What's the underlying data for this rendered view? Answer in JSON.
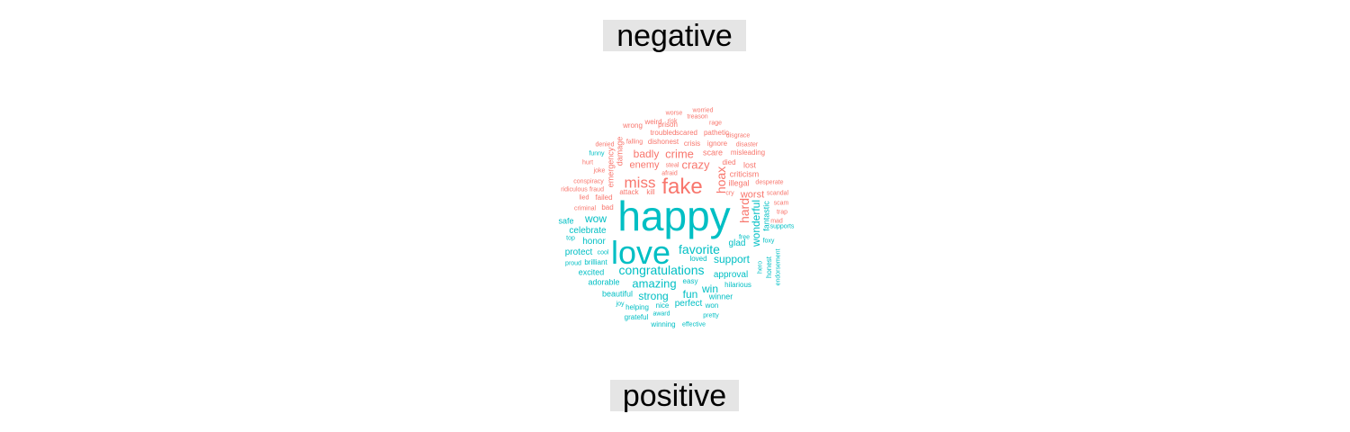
{
  "chart_data": {
    "type": "wordcloud",
    "groups": [
      {
        "name": "negative",
        "color": "#F8766D"
      },
      {
        "name": "positive",
        "color": "#00BFC4"
      }
    ],
    "words": [
      {
        "text": "happy",
        "group": "positive",
        "weight": 46
      },
      {
        "text": "love",
        "group": "positive",
        "weight": 36
      },
      {
        "text": "fake",
        "group": "negative",
        "weight": 24
      },
      {
        "text": "miss",
        "group": "negative",
        "weight": 17
      },
      {
        "text": "hoax",
        "group": "negative",
        "weight": 14
      },
      {
        "text": "hard",
        "group": "negative",
        "weight": 14
      },
      {
        "text": "favorite",
        "group": "positive",
        "weight": 14
      },
      {
        "text": "congratulations",
        "group": "positive",
        "weight": 14
      },
      {
        "text": "amazing",
        "group": "positive",
        "weight": 13
      },
      {
        "text": "crazy",
        "group": "negative",
        "weight": 13
      },
      {
        "text": "crime",
        "group": "negative",
        "weight": 13
      },
      {
        "text": "badly",
        "group": "negative",
        "weight": 12
      },
      {
        "text": "wonderful",
        "group": "positive",
        "weight": 12
      },
      {
        "text": "support",
        "group": "positive",
        "weight": 12
      },
      {
        "text": "wow",
        "group": "positive",
        "weight": 12
      },
      {
        "text": "fun",
        "group": "positive",
        "weight": 12
      },
      {
        "text": "strong",
        "group": "positive",
        "weight": 12
      },
      {
        "text": "win",
        "group": "positive",
        "weight": 12
      },
      {
        "text": "worst",
        "group": "negative",
        "weight": 11
      },
      {
        "text": "enemy",
        "group": "negative",
        "weight": 11
      },
      {
        "text": "protect",
        "group": "positive",
        "weight": 10
      },
      {
        "text": "glad",
        "group": "positive",
        "weight": 10
      },
      {
        "text": "celebrate",
        "group": "positive",
        "weight": 10
      },
      {
        "text": "perfect",
        "group": "positive",
        "weight": 10
      },
      {
        "text": "honor",
        "group": "positive",
        "weight": 10
      },
      {
        "text": "approval",
        "group": "positive",
        "weight": 10
      },
      {
        "text": "illegal",
        "group": "negative",
        "weight": 9
      },
      {
        "text": "beautiful",
        "group": "positive",
        "weight": 9
      },
      {
        "text": "fantastic",
        "group": "positive",
        "weight": 9
      },
      {
        "text": "winner",
        "group": "positive",
        "weight": 9
      },
      {
        "text": "scare",
        "group": "negative",
        "weight": 9
      },
      {
        "text": "criticism",
        "group": "negative",
        "weight": 9
      },
      {
        "text": "lost",
        "group": "negative",
        "weight": 9
      },
      {
        "text": "safe",
        "group": "positive",
        "weight": 9
      },
      {
        "text": "damage",
        "group": "negative",
        "weight": 9
      },
      {
        "text": "emergency",
        "group": "negative",
        "weight": 9
      },
      {
        "text": "excited",
        "group": "positive",
        "weight": 9
      },
      {
        "text": "adorable",
        "group": "positive",
        "weight": 9
      },
      {
        "text": "misleading",
        "group": "negative",
        "weight": 8
      },
      {
        "text": "dishonest",
        "group": "negative",
        "weight": 8
      },
      {
        "text": "failed",
        "group": "negative",
        "weight": 8
      },
      {
        "text": "honest",
        "group": "positive",
        "weight": 8
      },
      {
        "text": "grateful",
        "group": "positive",
        "weight": 8
      },
      {
        "text": "loved",
        "group": "positive",
        "weight": 8
      },
      {
        "text": "easy",
        "group": "positive",
        "weight": 8
      },
      {
        "text": "hilarious",
        "group": "positive",
        "weight": 8
      },
      {
        "text": "pathetic",
        "group": "negative",
        "weight": 8
      },
      {
        "text": "troubled",
        "group": "negative",
        "weight": 8
      },
      {
        "text": "scared",
        "group": "negative",
        "weight": 8
      },
      {
        "text": "wrong",
        "group": "negative",
        "weight": 8
      },
      {
        "text": "weird",
        "group": "negative",
        "weight": 8
      },
      {
        "text": "prison",
        "group": "negative",
        "weight": 8
      },
      {
        "text": "crisis",
        "group": "negative",
        "weight": 8
      },
      {
        "text": "ignore",
        "group": "negative",
        "weight": 8
      },
      {
        "text": "died",
        "group": "negative",
        "weight": 8
      },
      {
        "text": "attack",
        "group": "negative",
        "weight": 8
      },
      {
        "text": "kill",
        "group": "negative",
        "weight": 8
      },
      {
        "text": "bad",
        "group": "negative",
        "weight": 8
      },
      {
        "text": "brilliant",
        "group": "positive",
        "weight": 8
      },
      {
        "text": "nice",
        "group": "positive",
        "weight": 8
      },
      {
        "text": "won",
        "group": "positive",
        "weight": 8
      },
      {
        "text": "helping",
        "group": "positive",
        "weight": 8
      },
      {
        "text": "winning",
        "group": "positive",
        "weight": 8
      },
      {
        "text": "risk",
        "group": "negative",
        "weight": 7
      },
      {
        "text": "worried",
        "group": "negative",
        "weight": 7
      },
      {
        "text": "worse",
        "group": "negative",
        "weight": 7
      },
      {
        "text": "treason",
        "group": "negative",
        "weight": 7
      },
      {
        "text": "rage",
        "group": "negative",
        "weight": 7
      },
      {
        "text": "disgrace",
        "group": "negative",
        "weight": 7
      },
      {
        "text": "disaster",
        "group": "negative",
        "weight": 7
      },
      {
        "text": "desperate",
        "group": "negative",
        "weight": 7
      },
      {
        "text": "scandal",
        "group": "negative",
        "weight": 7
      },
      {
        "text": "scam",
        "group": "negative",
        "weight": 7
      },
      {
        "text": "trap",
        "group": "negative",
        "weight": 7
      },
      {
        "text": "mad",
        "group": "negative",
        "weight": 7
      },
      {
        "text": "falling",
        "group": "negative",
        "weight": 7
      },
      {
        "text": "denied",
        "group": "negative",
        "weight": 7
      },
      {
        "text": "funny",
        "group": "positive",
        "weight": 7
      },
      {
        "text": "hurt",
        "group": "negative",
        "weight": 7
      },
      {
        "text": "joke",
        "group": "negative",
        "weight": 7
      },
      {
        "text": "conspiracy",
        "group": "negative",
        "weight": 7
      },
      {
        "text": "ridiculous",
        "group": "negative",
        "weight": 7
      },
      {
        "text": "fraud",
        "group": "negative",
        "weight": 7
      },
      {
        "text": "lied",
        "group": "negative",
        "weight": 7
      },
      {
        "text": "criminal",
        "group": "negative",
        "weight": 7
      },
      {
        "text": "cry",
        "group": "negative",
        "weight": 7
      },
      {
        "text": "steal",
        "group": "negative",
        "weight": 7
      },
      {
        "text": "afraid",
        "group": "negative",
        "weight": 7
      },
      {
        "text": "supports",
        "group": "positive",
        "weight": 7
      },
      {
        "text": "free",
        "group": "positive",
        "weight": 7
      },
      {
        "text": "top",
        "group": "positive",
        "weight": 7
      },
      {
        "text": "cool",
        "group": "positive",
        "weight": 7
      },
      {
        "text": "proud",
        "group": "positive",
        "weight": 7
      },
      {
        "text": "foxy",
        "group": "positive",
        "weight": 7
      },
      {
        "text": "hero",
        "group": "positive",
        "weight": 7
      },
      {
        "text": "endorsement",
        "group": "positive",
        "weight": 7
      },
      {
        "text": "joy",
        "group": "positive",
        "weight": 7
      },
      {
        "text": "award",
        "group": "positive",
        "weight": 7
      },
      {
        "text": "pretty",
        "group": "positive",
        "weight": 7
      },
      {
        "text": "effective",
        "group": "positive",
        "weight": 7
      }
    ]
  }
}
